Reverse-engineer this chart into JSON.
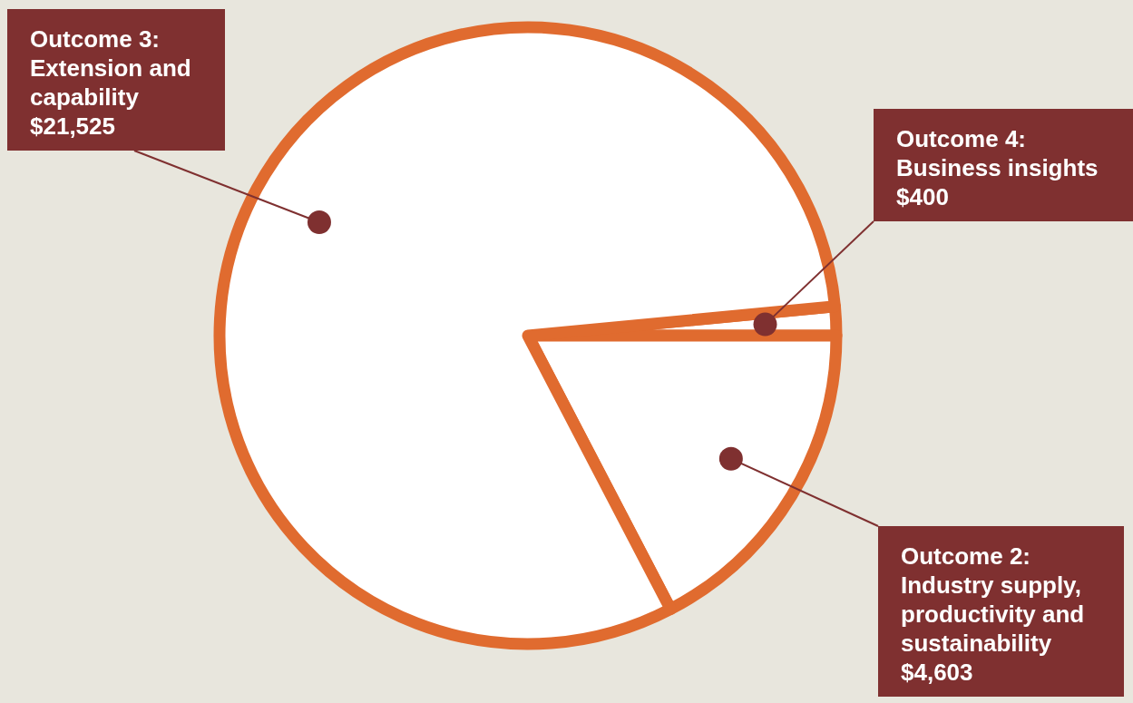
{
  "chart_data": {
    "type": "pie",
    "categories": [
      "Outcome 4: Business insights",
      "Outcome 2: Industry supply, productivity and sustainability",
      "Outcome 3: Extension and capability"
    ],
    "values": [
      400,
      4603,
      21525
    ],
    "colors": [
      "#ffffff",
      "#ffffff",
      "#ffffff"
    ],
    "value_labels": [
      "$400",
      "$4,603",
      "$21,525"
    ]
  }
}
